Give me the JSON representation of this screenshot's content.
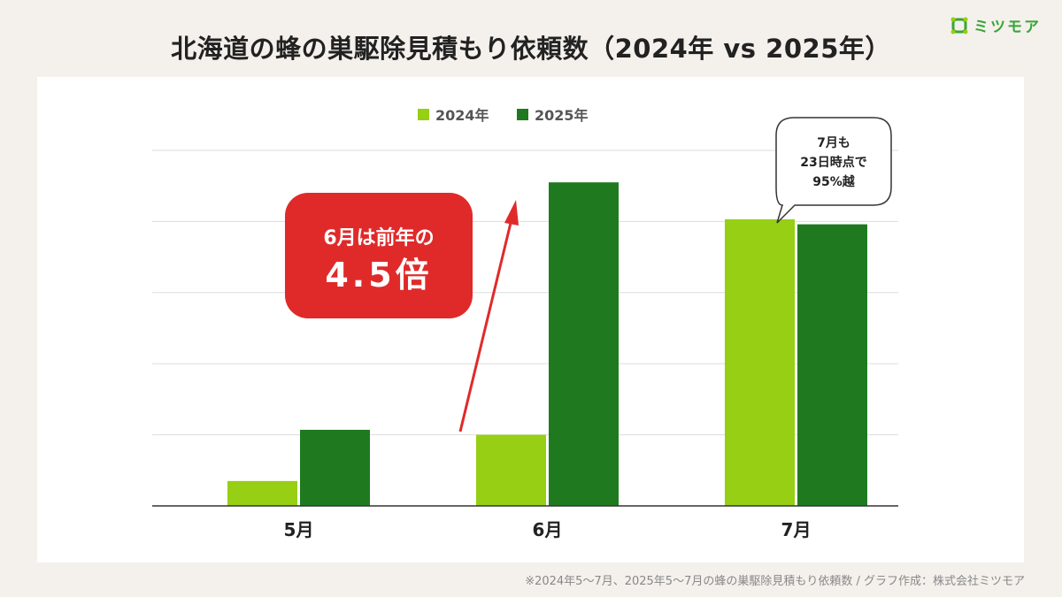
{
  "title": "北海道の蜂の巣駆除見積もり依頼数（2024年 vs 2025年）",
  "logo": {
    "text": "ミツモア",
    "color": "#3aa537"
  },
  "footer": "※2024年5〜7月、2025年5〜7月の蜂の巣駆除見積もり依頼数 / グラフ作成：株式会社ミツモア",
  "chart_data": {
    "type": "bar",
    "title": "北海道の蜂の巣駆除見積もり依頼数（2024年 vs 2025年）",
    "categories": [
      "5月",
      "6月",
      "7月"
    ],
    "series": [
      {
        "name": "2024年",
        "color": "#96cf14",
        "values": [
          0.35,
          1.0,
          4.03
        ]
      },
      {
        "name": "2025年",
        "color": "#1f7a1f",
        "values": [
          1.07,
          4.55,
          3.96
        ]
      }
    ],
    "ylim": [
      0,
      5
    ],
    "y_tick_labels_shown": false,
    "grid": true,
    "legend": "top-center",
    "annotations": {
      "callout_line1": "6月は前年の",
      "callout_line2": "4.5倍",
      "callout_color": "#e02a2a",
      "bubble_lines": [
        "7月も",
        "23日時点で",
        "95%越"
      ]
    }
  }
}
